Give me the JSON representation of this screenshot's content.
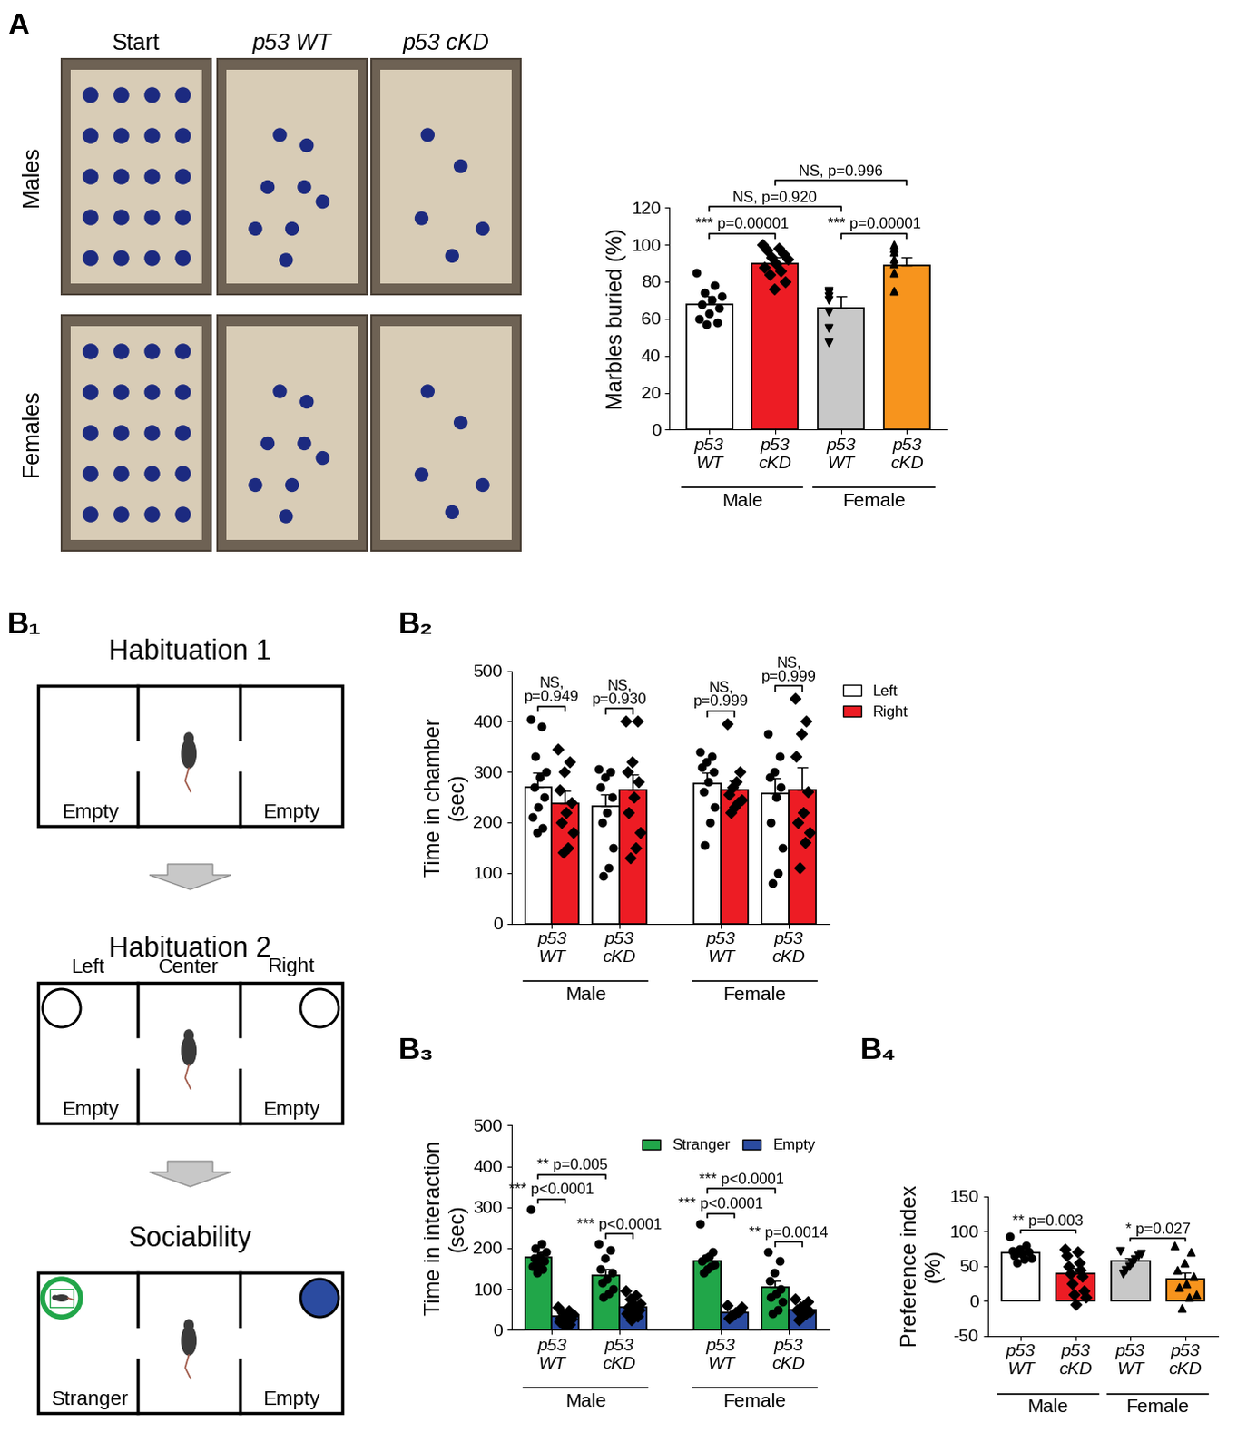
{
  "panel_labels": [
    "A",
    "B₁",
    "B₂",
    "B₃",
    "B₄"
  ],
  "photos": {
    "columns": [
      "Start",
      "p53 WT",
      "p53 cKD"
    ],
    "rows": [
      "Males",
      "Females"
    ]
  },
  "diagram": {
    "steps": [
      {
        "title": "Habituation 1",
        "bottom_labels": [
          "Empty",
          "Empty"
        ],
        "cups": false
      },
      {
        "title": "Habituation 2",
        "top_labels": [
          "Left",
          "Center",
          "Right"
        ],
        "bottom_labels": [
          "Empty",
          "Empty"
        ],
        "cups": true
      },
      {
        "title": "Sociability",
        "bottom_labels": [
          "Stranger",
          "Empty"
        ],
        "cups": true
      }
    ]
  },
  "chart_data": [
    {
      "type": "bar",
      "ylabel": "Marbles buried (%)",
      "categories": [
        "p53\nWT",
        "p53\ncKD",
        "p53\nWT",
        "p53\ncKD"
      ],
      "groups": [
        {
          "label": "Male",
          "categories": [
            0,
            1
          ]
        },
        {
          "label": "Female",
          "categories": [
            2,
            3
          ]
        }
      ],
      "values": [
        68,
        90,
        66,
        89
      ],
      "errors": [
        4,
        3,
        6,
        4
      ],
      "colors": [
        "#ffffff",
        "#ed1c24",
        "#c8c8c8",
        "#f7941d"
      ],
      "markers": [
        "circle",
        "diamond",
        "triangle_down",
        "triangle_up"
      ],
      "points": [
        [
          85,
          78,
          74,
          72,
          70,
          68,
          66,
          63,
          60,
          58,
          57
        ],
        [
          100,
          98,
          97,
          95,
          93,
          92,
          90,
          88,
          86,
          84,
          80,
          76
        ],
        [
          75,
          74,
          72,
          70,
          64,
          55,
          47
        ],
        [
          100,
          98,
          96,
          92,
          90,
          85,
          75
        ]
      ],
      "ylim": [
        0,
        120
      ],
      "yticks": [
        0,
        20,
        40,
        60,
        80,
        100,
        120
      ],
      "significance": [
        {
          "text": "*** p=0.00001",
          "bars": [
            0,
            1
          ]
        },
        {
          "text": "*** p=0.00001",
          "bars": [
            2,
            3
          ]
        },
        {
          "text": "NS, p=0.920",
          "bars": [
            0,
            2
          ]
        },
        {
          "text": "NS, p=0.996",
          "bars": [
            1,
            3
          ]
        }
      ]
    },
    {
      "type": "grouped_bar",
      "ylabel": "Time in chamber\n(sec)",
      "categories": [
        "p53\nWT",
        "p53\ncKD",
        "p53\nWT",
        "p53\ncKD"
      ],
      "groups": [
        {
          "label": "Male",
          "categories": [
            0,
            1
          ]
        },
        {
          "label": "Female",
          "categories": [
            2,
            3
          ]
        }
      ],
      "series": [
        {
          "name": "Left",
          "color": "#ffffff",
          "marker": "circle",
          "values": [
            270,
            233,
            277,
            257
          ],
          "errors": [
            28,
            22,
            22,
            30
          ],
          "points": [
            [
              405,
              390,
              330,
              300,
              290,
              270,
              250,
              230,
              210,
              190,
              180
            ],
            [
              305,
              300,
              290,
              270,
              250,
              220,
              200,
              150,
              110,
              95
            ],
            [
              340,
              330,
              320,
              310,
              300,
              280,
              260,
              230,
              200,
              155
            ],
            [
              375,
              330,
              300,
              290,
              270,
              250,
              200,
              150,
              100,
              80
            ]
          ]
        },
        {
          "name": "Right",
          "color": "#ed1c24",
          "marker": "diamond",
          "values": [
            238,
            265,
            265,
            264
          ],
          "errors": [
            25,
            30,
            18,
            45
          ],
          "points": [
            [
              345,
              320,
              300,
              265,
              240,
              220,
              200,
              180,
              150,
              140
            ],
            [
              400,
              400,
              320,
              300,
              280,
              250,
              220,
              180,
              150,
              130
            ],
            [
              395,
              300,
              280,
              270,
              255,
              245,
              240,
              230,
              220
            ],
            [
              445,
              400,
              375,
              330,
              260,
              220,
              200,
              180,
              160,
              110
            ]
          ]
        }
      ],
      "legend": "upper left",
      "ylim": [
        0,
        500
      ],
      "yticks": [
        0,
        100,
        200,
        300,
        400,
        500
      ],
      "significance": [
        {
          "text": "NS,\np=0.949",
          "bars": [
            [
              0,
              0
            ],
            [
              0,
              1
            ]
          ]
        },
        {
          "text": "NS,\np=0.930",
          "bars": [
            [
              1,
              0
            ],
            [
              1,
              1
            ]
          ]
        },
        {
          "text": "NS,\np=0.999",
          "bars": [
            [
              2,
              0
            ],
            [
              2,
              1
            ]
          ]
        },
        {
          "text": "NS,\np=0.999",
          "bars": [
            [
              3,
              0
            ],
            [
              3,
              1
            ]
          ]
        }
      ]
    },
    {
      "type": "grouped_bar",
      "ylabel": "Time in interaction\n(sec)",
      "categories": [
        "p53\nWT",
        "p53\ncKD",
        "p53\nWT",
        "p53\ncKD"
      ],
      "groups": [
        {
          "label": "Male",
          "categories": [
            0,
            1
          ]
        },
        {
          "label": "Female",
          "categories": [
            2,
            3
          ]
        }
      ],
      "series": [
        {
          "name": "Stranger",
          "color": "#21a649",
          "marker": "circle",
          "values": [
            178,
            133,
            170,
            105
          ],
          "errors": [
            12,
            15,
            12,
            15
          ],
          "points": [
            [
              295,
              210,
              200,
              190,
              180,
              175,
              170,
              160,
              155,
              150,
              140
            ],
            [
              210,
              195,
              175,
              150,
              140,
              125,
              115,
              100,
              90,
              80
            ],
            [
              260,
              190,
              180,
              175,
              170,
              160,
              155,
              150,
              140
            ],
            [
              190,
              170,
              140,
              120,
              100,
              90,
              80,
              70,
              50,
              40
            ]
          ]
        },
        {
          "name": "Empty",
          "color": "#2b4ba0",
          "marker": "diamond",
          "values": [
            33,
            55,
            43,
            50
          ],
          "errors": [
            5,
            6,
            4,
            5
          ],
          "points": [
            [
              55,
              48,
              42,
              38,
              35,
              30,
              28,
              25,
              20,
              15,
              12
            ],
            [
              95,
              85,
              75,
              65,
              58,
              55,
              50,
              45,
              40,
              35,
              25
            ],
            [
              60,
              55,
              48,
              45,
              42,
              38,
              35,
              30
            ],
            [
              75,
              70,
              60,
              55,
              50,
              45,
              40,
              35,
              25
            ]
          ]
        }
      ],
      "legend": "upper right",
      "ylim": [
        0,
        500
      ],
      "yticks": [
        0,
        100,
        200,
        300,
        400,
        500
      ],
      "significance": [
        {
          "text": "** p=0.005",
          "bars": [
            [
              0,
              0
            ],
            [
              1,
              0
            ]
          ]
        },
        {
          "text": "*** p<0.0001",
          "bars": [
            [
              0,
              0
            ],
            [
              0,
              1
            ]
          ]
        },
        {
          "text": "*** p<0.0001",
          "bars": [
            [
              1,
              0
            ],
            [
              1,
              1
            ]
          ]
        },
        {
          "text": "*** p<0.0001",
          "bars": [
            [
              2,
              0
            ],
            [
              3,
              0
            ]
          ]
        },
        {
          "text": "*** p<0.0001",
          "bars": [
            [
              2,
              0
            ],
            [
              2,
              1
            ]
          ]
        },
        {
          "text": "** p=0.0014",
          "bars": [
            [
              3,
              0
            ],
            [
              3,
              1
            ]
          ]
        }
      ]
    },
    {
      "type": "bar",
      "ylabel": "Preference index\n(%)",
      "categories": [
        "p53\nWT",
        "p53\ncKD",
        "p53\nWT",
        "p53\ncKD"
      ],
      "groups": [
        {
          "label": "Male",
          "categories": [
            0,
            1
          ]
        },
        {
          "label": "Female",
          "categories": [
            2,
            3
          ]
        }
      ],
      "values": [
        69,
        40,
        57,
        32
      ],
      "errors": [
        4,
        7,
        4,
        9
      ],
      "colors": [
        "#ffffff",
        "#ed1c24",
        "#c8c8c8",
        "#f7941d"
      ],
      "markers": [
        "circle",
        "diamond",
        "triangle_down",
        "triangle_up"
      ],
      "points": [
        [
          92,
          80,
          75,
          72,
          70,
          68,
          65,
          62,
          60,
          55
        ],
        [
          75,
          70,
          65,
          55,
          50,
          45,
          40,
          35,
          25,
          15,
          10,
          5,
          -5
        ],
        [
          72,
          68,
          65,
          60,
          55,
          50,
          45,
          40
        ],
        [
          80,
          70,
          55,
          45,
          35,
          25,
          20,
          10,
          5,
          -10
        ]
      ],
      "ylim": [
        -50,
        150
      ],
      "yticks": [
        -50,
        0,
        50,
        100,
        150
      ],
      "significance": [
        {
          "text": "** p=0.003",
          "bars": [
            0,
            1
          ]
        },
        {
          "text": "* p=0.027",
          "bars": [
            2,
            3
          ]
        }
      ]
    }
  ]
}
